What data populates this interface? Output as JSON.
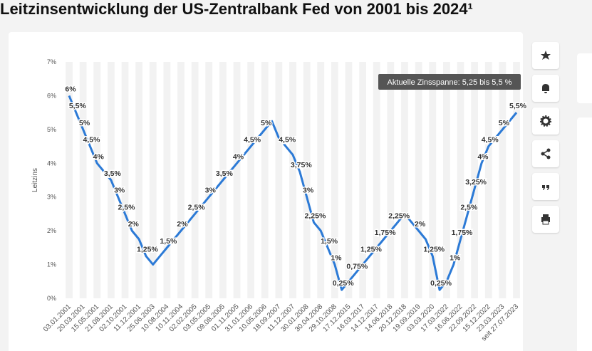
{
  "chart_data": {
    "type": "line",
    "title": "Leitzinsentwicklung der US-Zentralbank Fed von 2001 bis 2024¹",
    "y_label": "Leitzins",
    "annotation": "Aktuelle Zinsspanne: 5,25 bis 5,5 %",
    "categories": [
      "03.01.2001",
      null,
      "20.03.2001",
      null,
      "15.05.2001",
      null,
      "21.08.2001",
      null,
      "02.10.2001",
      null,
      "11.12.2001",
      null,
      "25.06.2003",
      null,
      "10.08.2004",
      null,
      "10.11.2004",
      null,
      "02.02.2005",
      null,
      "03.05.2005",
      null,
      "09.08.2005",
      null,
      "01.11.2005",
      null,
      "31.01.2006",
      null,
      "10.05.2006",
      null,
      "18.09.2007",
      null,
      "11.12.2007",
      null,
      "30.01.2008",
      null,
      "30.04.2008",
      null,
      "29.10.2008",
      null,
      "17.12.2015",
      null,
      "16.03.2017",
      null,
      "14.12.2017",
      null,
      "14.06.2018",
      null,
      "20.12.2018",
      null,
      "19.09.2019",
      null,
      "03.03.2020",
      null,
      "17.03.2022",
      null,
      "16.06.2022",
      null,
      "22.09.2022",
      null,
      "15.12.2022",
      null,
      "23.03.2023",
      null,
      "seit 27.07.2023"
    ],
    "series": [
      {
        "name": "Leitzins",
        "color": "#2c7ad6",
        "values": [
          6,
          5.5,
          5,
          4.5,
          4,
          3.75,
          3.5,
          3,
          2.5,
          2,
          1.75,
          1.25,
          1,
          1.25,
          1.5,
          1.75,
          2,
          2.25,
          2.5,
          2.75,
          3,
          3.25,
          3.5,
          3.75,
          4,
          4.25,
          4.5,
          4.75,
          5,
          5.25,
          4.75,
          4.5,
          4.25,
          3.75,
          3,
          2.25,
          2,
          1.5,
          1,
          0.25,
          0.5,
          0.75,
          1,
          1.25,
          1.5,
          1.75,
          2,
          2.25,
          2.5,
          2.25,
          2,
          1.75,
          1.25,
          0.25,
          0.5,
          1,
          1.75,
          2.5,
          3.25,
          4,
          4.5,
          4.75,
          5,
          5.25,
          5.5
        ],
        "value_labels": [
          "6%",
          "5,5%",
          "5%",
          "4,5%",
          "4%",
          null,
          "3,5%",
          "3%",
          "2,5%",
          "2%",
          null,
          "1,25%",
          null,
          null,
          "1,5%",
          null,
          "2%",
          null,
          "2,5%",
          null,
          "3%",
          null,
          "3,5%",
          null,
          "4%",
          null,
          "4,5%",
          null,
          "5%",
          null,
          null,
          "4,5%",
          null,
          "3,75%",
          "3%",
          "2,25%",
          null,
          "1,5%",
          "1%",
          "0,25%",
          null,
          "0,75%",
          null,
          "1,25%",
          null,
          "1,75%",
          null,
          "2,25%",
          null,
          null,
          "2%",
          null,
          "1,25%",
          "0,25%",
          null,
          "1%",
          "1,75%",
          "2,5%",
          "3,25%",
          "4%",
          "4,5%",
          null,
          "5%",
          null,
          "5,5%"
        ]
      }
    ],
    "ylim": [
      0,
      7
    ],
    "yticks": [
      {
        "value": 0,
        "label": "0%"
      },
      {
        "value": 1,
        "label": "1%"
      },
      {
        "value": 2,
        "label": "2%"
      },
      {
        "value": 3,
        "label": "3%"
      },
      {
        "value": 4,
        "label": "4%"
      },
      {
        "value": 5,
        "label": "5%"
      },
      {
        "value": 6,
        "label": "6%"
      },
      {
        "value": 7,
        "label": "7%"
      }
    ],
    "grid": false
  }
}
